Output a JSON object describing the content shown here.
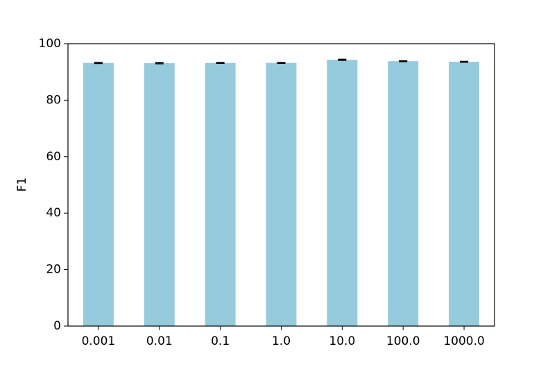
{
  "chart_data": {
    "type": "bar",
    "ylabel": "F1",
    "categories": [
      "0.001",
      "0.01",
      "0.1",
      "1.0",
      "10.0",
      "100.0",
      "1000.0"
    ],
    "values": [
      93.2,
      93.1,
      93.2,
      93.2,
      94.3,
      93.8,
      93.6
    ],
    "errors": [
      0.2,
      0.2,
      0.15,
      0.15,
      0.2,
      0.15,
      0.15
    ],
    "color": "#96cbde",
    "error_color": "#000000",
    "ylim": [
      0,
      100
    ],
    "yticks": [
      0,
      20,
      40,
      60,
      80,
      100
    ],
    "grid": false
  }
}
